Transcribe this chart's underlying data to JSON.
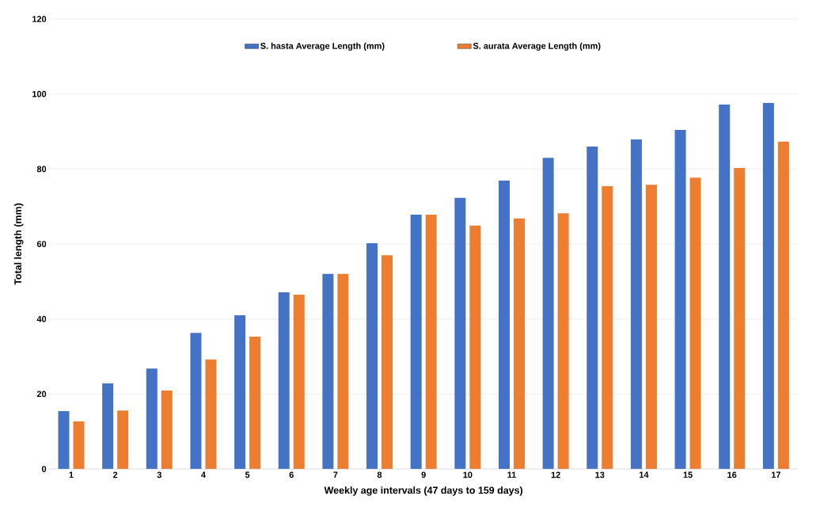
{
  "chart_data": {
    "type": "bar",
    "xlabel": "Weekly age intervals (47 days  to 159 days)",
    "ylabel": "Total length (mm)",
    "categories": [
      "1",
      "2",
      "3",
      "4",
      "5",
      "6",
      "7",
      "8",
      "9",
      "10",
      "11",
      "12",
      "13",
      "14",
      "15",
      "16",
      "17"
    ],
    "series": [
      {
        "name": "S. hasta Average  Length (mm)",
        "color": "#4472c4",
        "values": [
          15.4,
          22.8,
          26.8,
          36.3,
          41,
          47.1,
          52,
          60.2,
          67.8,
          72.3,
          76.9,
          83,
          86,
          87.9,
          90.4,
          97.2,
          97.6
        ]
      },
      {
        "name": "S. aurata Average Length (mm)",
        "color": "#ed7d31",
        "values": [
          12.7,
          15.6,
          20.9,
          29.2,
          35.3,
          46.5,
          52,
          57,
          67.8,
          64.9,
          66.8,
          68.2,
          75.4,
          75.8,
          77.7,
          80.3,
          87.3
        ]
      }
    ],
    "ylim": [
      0,
      120
    ],
    "yticks": [
      0,
      20,
      40,
      60,
      80,
      100,
      120
    ],
    "grid": "y",
    "legend": "top"
  }
}
